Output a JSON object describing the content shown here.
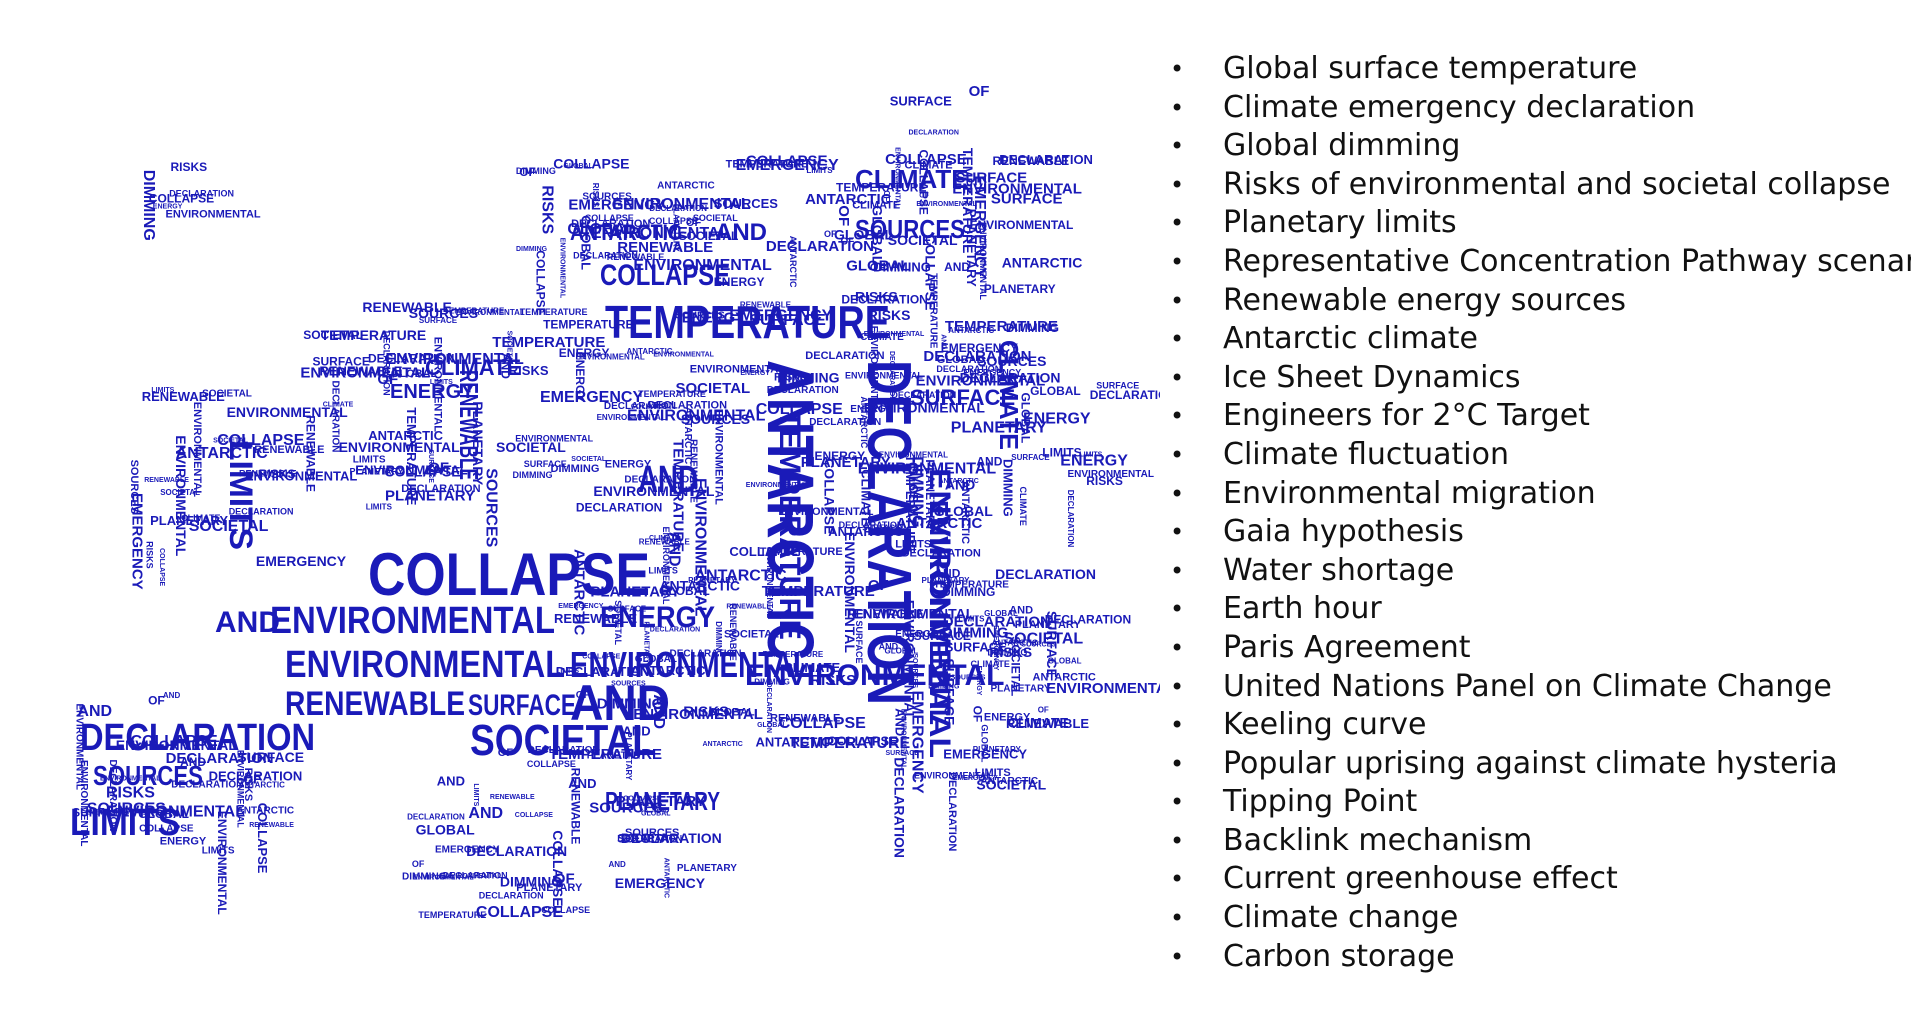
{
  "word_cloud": {
    "color": "#1a1ab8",
    "shape": "europe-map",
    "words": [
      "TEMPERATURE",
      "ANTARCTIC",
      "DECLARATION",
      "COLLAPSE",
      "ENVIRONMENTAL",
      "ENVIRONMENTAL",
      "ENVIRONMENTAL",
      "SOCIETAL",
      "AND",
      "RENEWABLE",
      "SURFACE",
      "DECLARATION",
      "SOURCES",
      "LIMITS",
      "ENERGY",
      "PLANETARY",
      "CLIMATE",
      "GLOBAL",
      "EMERGENCY",
      "RISKS",
      "DIMMING",
      "OF"
    ]
  },
  "topics": {
    "bullet_glyph": "•",
    "items": [
      "Global surface temperature",
      "Climate emergency declaration",
      "Global dimming",
      "Risks of environmental and societal collapse",
      "Planetary limits",
      "Representative Concentration Pathway scenarios",
      "Renewable energy sources",
      "Antarctic climate",
      "Ice Sheet Dynamics",
      "Engineers for 2°C Target",
      "Climate fluctuation",
      "Environmental migration",
      "Gaia hypothesis",
      "Water shortage",
      "Earth hour",
      "Paris Agreement",
      "United Nations Panel on Climate Change",
      "Keeling curve",
      "Popular uprising against climate hysteria",
      "Tipping Point",
      "Backlink mechanism",
      "Current greenhouse effect",
      "Climate change",
      "Carbon storage"
    ]
  }
}
